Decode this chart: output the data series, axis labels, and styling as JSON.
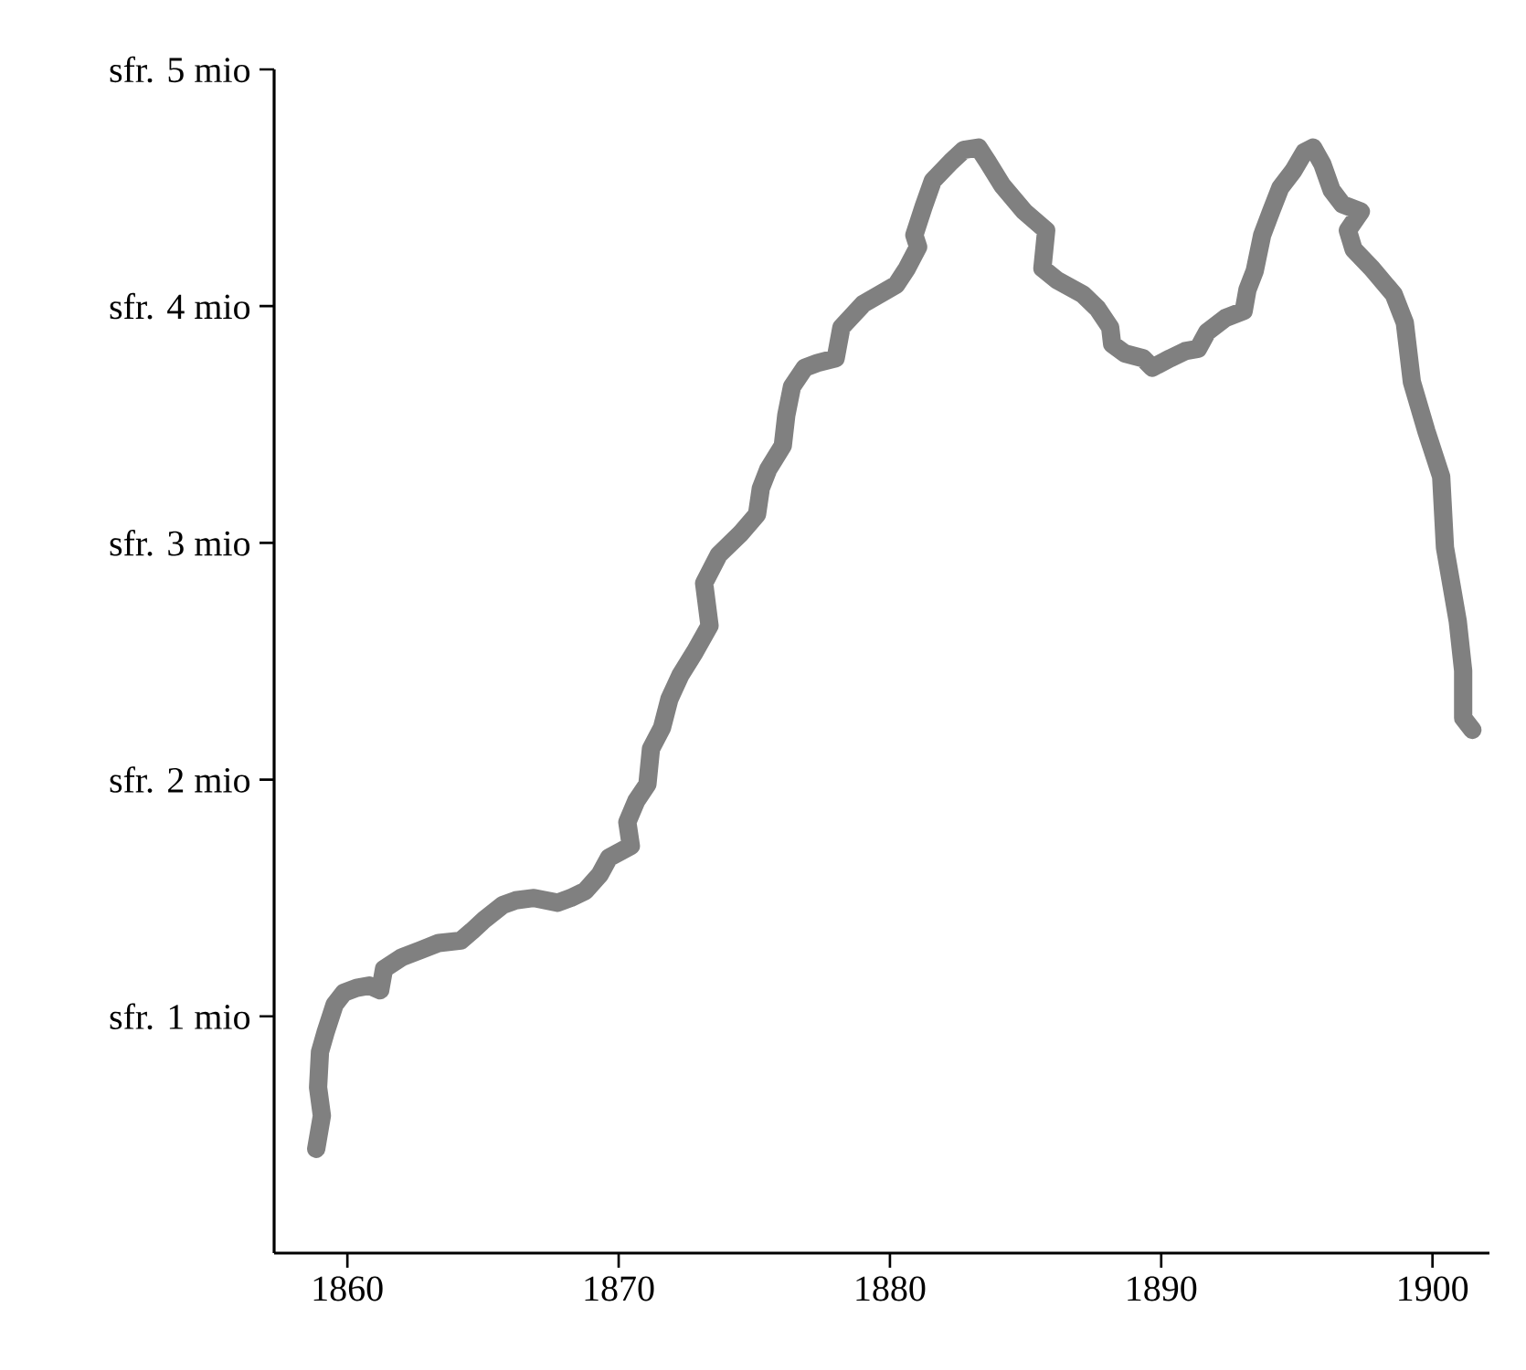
{
  "chart_data": {
    "type": "line",
    "xlim": [
      1857.3,
      1902.1
    ],
    "ylim": [
      0,
      5
    ],
    "xticks": [
      1860,
      1870,
      1880,
      1890,
      1900
    ],
    "yticks": [
      {
        "value": 1,
        "label": "sfr. 1 mio"
      },
      {
        "value": 2,
        "label": "sfr. 2 mio"
      },
      {
        "value": 3,
        "label": "sfr. 3 mio"
      },
      {
        "value": 4,
        "label": "sfr. 4 mio"
      },
      {
        "value": 5,
        "label": "sfr. 5 mio"
      }
    ],
    "grid": false,
    "series": [
      {
        "color": "#808080",
        "x": [
          1858.85,
          1859.06,
          1858.92,
          1858.99,
          1859.19,
          1859.53,
          1859.87,
          1860.34,
          1860.81,
          1861.21,
          1861.35,
          1862.02,
          1862.7,
          1863.37,
          1864.18,
          1864.59,
          1865.06,
          1865.73,
          1866.2,
          1866.88,
          1867.75,
          1868.23,
          1868.77,
          1869.31,
          1869.64,
          1870.45,
          1870.32,
          1870.65,
          1871.06,
          1871.19,
          1871.6,
          1871.87,
          1872.27,
          1872.81,
          1873.35,
          1873.15,
          1873.69,
          1874.5,
          1875.1,
          1875.24,
          1875.51,
          1876.05,
          1876.18,
          1876.39,
          1876.86,
          1877.33,
          1878.0,
          1878.21,
          1879.02,
          1880.23,
          1880.63,
          1881.04,
          1880.9,
          1881.24,
          1881.58,
          1882.25,
          1882.72,
          1883.26,
          1883.6,
          1884.14,
          1884.95,
          1885.76,
          1885.62,
          1886.16,
          1887.11,
          1887.65,
          1888.12,
          1888.19,
          1888.66,
          1889.33,
          1889.67,
          1890.34,
          1890.88,
          1891.36,
          1891.69,
          1892.37,
          1893.04,
          1893.18,
          1893.45,
          1893.72,
          1894.05,
          1894.39,
          1894.86,
          1895.27,
          1895.6,
          1895.94,
          1896.28,
          1896.68,
          1897.36,
          1896.88,
          1897.09,
          1897.76,
          1898.57,
          1898.98,
          1899.24,
          1899.78,
          1900.32,
          1900.46,
          1900.93,
          1901.13,
          1901.13,
          1901.47
        ],
        "values": [
          0.44,
          0.58,
          0.7,
          0.85,
          0.93,
          1.05,
          1.1,
          1.12,
          1.13,
          1.11,
          1.2,
          1.25,
          1.28,
          1.31,
          1.32,
          1.36,
          1.41,
          1.47,
          1.49,
          1.5,
          1.48,
          1.5,
          1.53,
          1.6,
          1.67,
          1.72,
          1.82,
          1.91,
          1.98,
          2.13,
          2.22,
          2.34,
          2.44,
          2.54,
          2.65,
          2.83,
          2.95,
          3.04,
          3.12,
          3.23,
          3.31,
          3.41,
          3.54,
          3.66,
          3.74,
          3.76,
          3.78,
          3.91,
          4.01,
          4.09,
          4.16,
          4.25,
          4.3,
          4.42,
          4.53,
          4.61,
          4.66,
          4.67,
          4.61,
          4.51,
          4.4,
          4.32,
          4.16,
          4.11,
          4.05,
          3.99,
          3.91,
          3.84,
          3.8,
          3.78,
          3.74,
          3.78,
          3.81,
          3.82,
          3.89,
          3.95,
          3.98,
          4.07,
          4.15,
          4.3,
          4.4,
          4.5,
          4.57,
          4.65,
          4.67,
          4.6,
          4.49,
          4.43,
          4.4,
          4.32,
          4.24,
          4.16,
          4.05,
          3.93,
          3.68,
          3.47,
          3.28,
          2.98,
          2.67,
          2.46,
          2.26,
          2.21
        ]
      }
    ]
  }
}
